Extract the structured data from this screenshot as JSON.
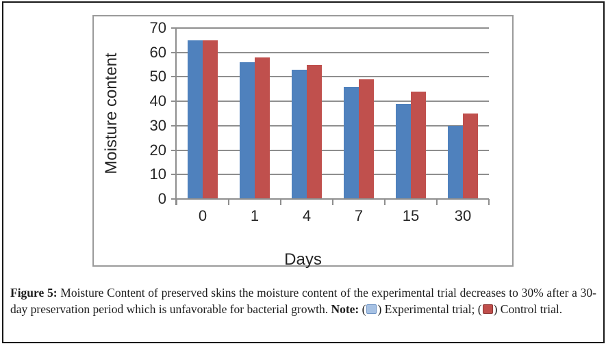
{
  "figure": {
    "caption_prefix": "Figure 5:",
    "caption_body": " Moisture Content of preserved skins the moisture content of the experimental trial decreases to 30% after a 30-day preservation period which is unfavorable for bacterial growth. ",
    "note_label": "Note:",
    "note_items": [
      {
        "label": "Experimental trial",
        "icon": "experimental-trial-swatch-icon",
        "swatch_color": "#a6c1e3",
        "swatch_border": "#6f94c4"
      },
      {
        "label": "Control trial",
        "icon": "control-trial-swatch-icon",
        "swatch_color": "#bf4e4b",
        "swatch_border": "#8e3836"
      }
    ]
  },
  "chart_data": {
    "type": "bar",
    "title": "",
    "categories": [
      "0",
      "1",
      "4",
      "7",
      "15",
      "30"
    ],
    "series": [
      {
        "name": "Experimental trial",
        "color": "#4f81bd",
        "values": [
          65,
          56,
          53,
          46,
          39,
          30
        ]
      },
      {
        "name": "Control trial",
        "color": "#c0504d",
        "values": [
          65,
          58,
          55,
          49,
          44,
          35
        ]
      }
    ],
    "xlabel": "Days",
    "ylabel": "Moisture content",
    "ylim": [
      0,
      70
    ],
    "yticks": [
      0,
      10,
      20,
      30,
      40,
      50,
      60,
      70
    ],
    "grid": true,
    "legend_position": "in-caption",
    "grid_color": "#8e8e8e",
    "axis_text_color": "#262626"
  }
}
